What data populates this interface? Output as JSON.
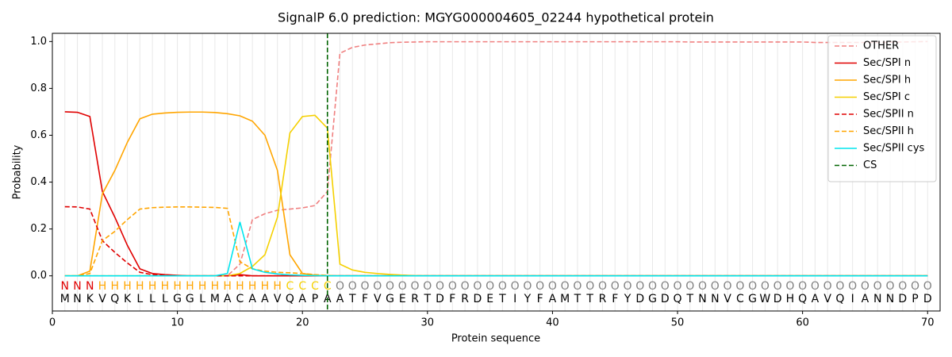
{
  "chart_data": {
    "type": "line",
    "title": "SignalP 6.0 prediction: MGYG000004605_02244 hypothetical protein",
    "xlabel": "Protein sequence",
    "ylabel": "Probability",
    "x": [
      1,
      2,
      3,
      4,
      5,
      6,
      7,
      8,
      9,
      10,
      11,
      12,
      13,
      14,
      15,
      16,
      17,
      18,
      19,
      20,
      21,
      22,
      23,
      24,
      25,
      26,
      27,
      28,
      29,
      30,
      31,
      32,
      33,
      34,
      35,
      36,
      37,
      38,
      39,
      40,
      41,
      42,
      43,
      44,
      45,
      46,
      47,
      48,
      49,
      50,
      51,
      52,
      53,
      54,
      55,
      56,
      57,
      58,
      59,
      60,
      61,
      62,
      63,
      64,
      65,
      66,
      67,
      68,
      69,
      70
    ],
    "sequence": [
      "M",
      "N",
      "K",
      "V",
      "Q",
      "K",
      "L",
      "L",
      "L",
      "G",
      "G",
      "L",
      "M",
      "A",
      "C",
      "A",
      "A",
      "V",
      "Q",
      "A",
      "P",
      "A",
      "A",
      "T",
      "F",
      "V",
      "G",
      "E",
      "R",
      "T",
      "D",
      "F",
      "R",
      "D",
      "E",
      "T",
      "I",
      "Y",
      "F",
      "A",
      "M",
      "T",
      "T",
      "R",
      "F",
      "Y",
      "D",
      "G",
      "D",
      "Q",
      "T",
      "N",
      "N",
      "V",
      "C",
      "G",
      "W",
      "D",
      "H",
      "Q",
      "A",
      "V",
      "Q",
      "I",
      "A",
      "N",
      "N",
      "D",
      "P",
      "D"
    ],
    "labels": [
      "N",
      "N",
      "N",
      "H",
      "H",
      "H",
      "H",
      "H",
      "H",
      "H",
      "H",
      "H",
      "H",
      "H",
      "H",
      "H",
      "H",
      "H",
      "C",
      "C",
      "C",
      "C",
      "O",
      "O",
      "O",
      "O",
      "O",
      "O",
      "O",
      "O",
      "O",
      "O",
      "O",
      "O",
      "O",
      "O",
      "O",
      "O",
      "O",
      "O",
      "O",
      "O",
      "O",
      "O",
      "O",
      "O",
      "O",
      "O",
      "O",
      "O",
      "O",
      "O",
      "O",
      "O",
      "O",
      "O",
      "O",
      "O",
      "O",
      "O",
      "O",
      "O",
      "O",
      "O",
      "O",
      "O",
      "O",
      "O",
      "O",
      "O"
    ],
    "label_colors": {
      "N": "#e00000",
      "H": "#ffa500",
      "C": "#f5d000",
      "O": "#808080"
    },
    "series": [
      {
        "name": "OTHER",
        "color": "#f08080",
        "dashed": true,
        "values": [
          0,
          0,
          0,
          0,
          0,
          0,
          0,
          0,
          0,
          0,
          0,
          0,
          0,
          0,
          0.05,
          0.24,
          0.265,
          0.28,
          0.285,
          0.29,
          0.3,
          0.36,
          0.95,
          0.975,
          0.985,
          0.99,
          0.995,
          0.997,
          0.998,
          0.999,
          0.999,
          0.999,
          0.999,
          0.999,
          0.999,
          0.999,
          0.999,
          0.999,
          0.999,
          0.999,
          0.999,
          0.999,
          0.999,
          0.999,
          0.999,
          0.999,
          0.999,
          0.999,
          0.999,
          0.999,
          0.998,
          0.998,
          0.998,
          0.998,
          0.998,
          0.998,
          0.998,
          0.998,
          0.998,
          0.998,
          0.996,
          0.996,
          0.996,
          0.996,
          0.996,
          0.996,
          0.997,
          0.998,
          0.999,
          1.0
        ]
      },
      {
        "name": "Sec/SPI n",
        "color": "#e00000",
        "dashed": false,
        "values": [
          0.7,
          0.698,
          0.68,
          0.36,
          0.25,
          0.13,
          0.03,
          0.01,
          0.005,
          0.002,
          0,
          0,
          0,
          0,
          0.005,
          0,
          0,
          0,
          0,
          0,
          0,
          0,
          0,
          0,
          0,
          0,
          0,
          0,
          0,
          0,
          0,
          0,
          0,
          0,
          0,
          0,
          0,
          0,
          0,
          0,
          0,
          0,
          0,
          0,
          0,
          0,
          0,
          0,
          0,
          0,
          0,
          0,
          0,
          0,
          0,
          0,
          0,
          0,
          0,
          0,
          0,
          0,
          0,
          0,
          0,
          0,
          0,
          0,
          0,
          0
        ]
      },
      {
        "name": "Sec/SPI h",
        "color": "#ffa500",
        "dashed": false,
        "values": [
          0,
          0,
          0.02,
          0.35,
          0.45,
          0.57,
          0.67,
          0.69,
          0.695,
          0.698,
          0.699,
          0.699,
          0.697,
          0.692,
          0.683,
          0.66,
          0.6,
          0.45,
          0.09,
          0.01,
          0.003,
          0,
          0,
          0,
          0,
          0,
          0,
          0,
          0,
          0,
          0,
          0,
          0,
          0,
          0,
          0,
          0,
          0,
          0,
          0,
          0,
          0,
          0,
          0,
          0,
          0,
          0,
          0,
          0,
          0,
          0,
          0,
          0,
          0,
          0,
          0,
          0,
          0,
          0,
          0,
          0,
          0,
          0,
          0,
          0,
          0,
          0,
          0,
          0,
          0
        ]
      },
      {
        "name": "Sec/SPI c",
        "color": "#f5d000",
        "dashed": false,
        "values": [
          0,
          0,
          0,
          0,
          0,
          0,
          0,
          0,
          0,
          0,
          0,
          0,
          0,
          0,
          0.01,
          0.04,
          0.09,
          0.25,
          0.61,
          0.68,
          0.685,
          0.63,
          0.05,
          0.025,
          0.015,
          0.01,
          0.006,
          0.003,
          0.001,
          0,
          0,
          0,
          0,
          0,
          0,
          0,
          0,
          0,
          0,
          0,
          0,
          0,
          0,
          0,
          0,
          0,
          0,
          0,
          0,
          0,
          0,
          0,
          0,
          0,
          0,
          0,
          0,
          0,
          0,
          0,
          0,
          0,
          0,
          0,
          0,
          0,
          0,
          0,
          0,
          0
        ]
      },
      {
        "name": "Sec/SPII n",
        "color": "#e00000",
        "dashed": true,
        "values": [
          0.295,
          0.294,
          0.285,
          0.15,
          0.1,
          0.055,
          0.015,
          0.005,
          0.002,
          0,
          0,
          0,
          0,
          0,
          0,
          0,
          0,
          0,
          0,
          0,
          0,
          0,
          0,
          0,
          0,
          0,
          0,
          0,
          0,
          0,
          0,
          0,
          0,
          0,
          0,
          0,
          0,
          0,
          0,
          0,
          0,
          0,
          0,
          0,
          0,
          0,
          0,
          0,
          0,
          0,
          0,
          0,
          0,
          0,
          0,
          0,
          0,
          0,
          0,
          0,
          0,
          0,
          0,
          0,
          0,
          0,
          0,
          0,
          0,
          0
        ]
      },
      {
        "name": "Sec/SPII h",
        "color": "#ffa500",
        "dashed": true,
        "values": [
          0,
          0,
          0.01,
          0.15,
          0.19,
          0.24,
          0.285,
          0.291,
          0.293,
          0.294,
          0.294,
          0.293,
          0.292,
          0.288,
          0.06,
          0.03,
          0.02,
          0.015,
          0.013,
          0.01,
          0.005,
          0.002,
          0,
          0,
          0,
          0,
          0,
          0,
          0,
          0,
          0,
          0,
          0,
          0,
          0,
          0,
          0,
          0,
          0,
          0,
          0,
          0,
          0,
          0,
          0,
          0,
          0,
          0,
          0,
          0,
          0,
          0,
          0,
          0,
          0,
          0,
          0,
          0,
          0,
          0,
          0,
          0,
          0,
          0,
          0,
          0,
          0,
          0,
          0,
          0
        ]
      },
      {
        "name": "Sec/SPII cys",
        "color": "#00e5ee",
        "dashed": false,
        "values": [
          0,
          0,
          0,
          0,
          0,
          0,
          0,
          0,
          0,
          0,
          0,
          0,
          0,
          0.01,
          0.23,
          0.03,
          0.015,
          0.008,
          0.004,
          0.002,
          0.001,
          0,
          0,
          0,
          0,
          0,
          0,
          0,
          0,
          0,
          0,
          0,
          0,
          0,
          0,
          0,
          0,
          0,
          0,
          0,
          0,
          0,
          0,
          0,
          0,
          0,
          0,
          0,
          0,
          0,
          0,
          0,
          0,
          0,
          0,
          0,
          0,
          0,
          0,
          0,
          0,
          0,
          0,
          0,
          0,
          0,
          0,
          0,
          0,
          0
        ]
      }
    ],
    "cs": {
      "name": "CS",
      "x": 22,
      "color": "#006400"
    },
    "xlim": [
      0,
      71
    ],
    "ylim": [
      -0.15,
      1.035
    ],
    "xticks": [
      0,
      10,
      20,
      30,
      40,
      50,
      60,
      70
    ],
    "yticks": [
      {
        "value": 0,
        "label": "0.0"
      },
      {
        "value": 0.2,
        "label": "0.2"
      },
      {
        "value": 0.4,
        "label": "0.4"
      },
      {
        "value": 0.6,
        "label": "0.6"
      },
      {
        "value": 0.8,
        "label": "0.8"
      },
      {
        "value": 1,
        "label": "1.0"
      }
    ],
    "grid": true,
    "legend": "upper right"
  }
}
